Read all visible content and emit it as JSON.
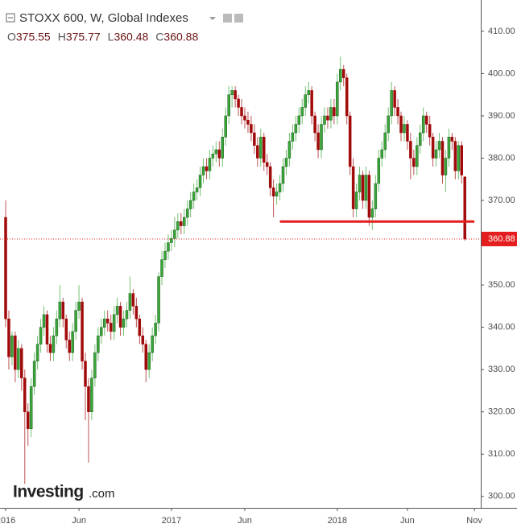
{
  "chart_data": {
    "type": "candlestick",
    "title": "STOXX 600, W, Global Indexes",
    "ohlc_labels": [
      "O",
      "H",
      "L",
      "C"
    ],
    "up_color": "#3aa63a",
    "down_color": "#a10a0a",
    "last_color": "#e41e1e",
    "watermark": "Investing",
    "watermark_suffix": ".com",
    "xlim": [
      -1.77,
      149
    ],
    "ylim": [
      297.3,
      417.4
    ],
    "xticks": [
      {
        "value": 0,
        "label": "2016"
      },
      {
        "value": 23,
        "label": "Jun"
      },
      {
        "value": 52,
        "label": "2017"
      },
      {
        "value": 75,
        "label": "Jun"
      },
      {
        "value": 104,
        "label": "2018"
      },
      {
        "value": 126,
        "label": "Jun"
      },
      {
        "value": 147,
        "label": "Nov"
      }
    ],
    "yticks": [
      {
        "value": 300,
        "label": "300.00"
      },
      {
        "value": 310,
        "label": "310.00"
      },
      {
        "value": 320,
        "label": "320.00"
      },
      {
        "value": 330,
        "label": "330.00"
      },
      {
        "value": 340,
        "label": "340.00"
      },
      {
        "value": 350,
        "label": "350.00"
      },
      {
        "value": 360,
        "label": "360.00"
      },
      {
        "value": 370,
        "label": "370.00"
      },
      {
        "value": 380,
        "label": "380.00"
      },
      {
        "value": 390,
        "label": "390.00"
      },
      {
        "value": 400,
        "label": "400.00"
      },
      {
        "value": 410,
        "label": "410.00"
      }
    ],
    "support_line": {
      "y": 365,
      "x": [
        86,
        147
      ],
      "color": "#e41e1e"
    },
    "open": [
      366,
      342,
      333,
      338,
      330,
      335,
      328,
      320,
      316,
      326,
      332,
      336,
      340,
      343,
      336,
      334,
      338,
      342,
      346,
      342,
      337,
      334,
      339,
      344,
      346,
      332,
      326,
      320,
      328,
      334,
      338,
      340,
      342,
      341,
      339,
      343,
      345,
      340,
      342,
      344,
      348,
      345,
      342,
      338,
      336,
      330,
      334,
      338,
      341,
      352,
      356,
      358,
      360,
      361,
      363,
      365,
      364,
      366,
      368,
      370,
      372,
      373,
      376,
      378,
      377,
      380,
      381,
      382,
      380,
      385,
      390,
      395,
      396,
      394,
      392,
      390,
      389,
      388,
      386,
      383,
      380,
      385,
      379,
      378,
      373,
      371,
      372,
      374,
      378,
      380,
      384,
      386,
      388,
      390,
      392,
      395,
      396,
      390,
      386,
      382,
      388,
      390,
      389,
      392,
      390,
      398,
      401,
      399,
      390,
      378,
      368,
      372,
      376,
      370,
      376,
      366,
      368,
      374,
      380,
      382,
      386,
      390,
      396,
      392,
      390,
      386,
      388,
      384,
      380,
      378,
      383,
      386,
      390,
      388,
      385,
      380,
      382,
      384,
      376,
      380,
      385,
      384,
      377,
      383,
      375.55
    ],
    "high": [
      370,
      344,
      339,
      339,
      337,
      336,
      330,
      322,
      328,
      334,
      338,
      342,
      345,
      344,
      338,
      340,
      344,
      350,
      347,
      343,
      339,
      341,
      346,
      350,
      347,
      334,
      328,
      330,
      336,
      340,
      342,
      344,
      344,
      343,
      345,
      347,
      346,
      344,
      346,
      352,
      349,
      347,
      343,
      340,
      337,
      336,
      340,
      343,
      353,
      358,
      360,
      362,
      363,
      366,
      367,
      367,
      368,
      370,
      372,
      374,
      375,
      378,
      380,
      380,
      382,
      383,
      384,
      384,
      387,
      392,
      397,
      397,
      397,
      395,
      394,
      392,
      391,
      390,
      388,
      385,
      387,
      386,
      381,
      379,
      375,
      374,
      376,
      380,
      382,
      386,
      388,
      390,
      392,
      394,
      397,
      398,
      397,
      391,
      388,
      390,
      392,
      392,
      394,
      394,
      400,
      404,
      402,
      400,
      391,
      380,
      374,
      378,
      377,
      378,
      377,
      370,
      376,
      382,
      384,
      388,
      392,
      398,
      397,
      394,
      391,
      390,
      389,
      386,
      382,
      385,
      388,
      392,
      391,
      390,
      386,
      384,
      386,
      385,
      382,
      387,
      386,
      385,
      384,
      384,
      375.77
    ],
    "low": [
      340,
      330,
      331,
      327,
      328,
      325,
      303,
      312,
      314,
      324,
      330,
      334,
      338,
      334,
      332,
      332,
      336,
      340,
      340,
      335,
      332,
      332,
      337,
      342,
      330,
      318,
      308,
      318,
      326,
      332,
      336,
      338,
      339,
      337,
      337,
      341,
      338,
      338,
      340,
      342,
      343,
      340,
      336,
      334,
      327,
      328,
      332,
      336,
      339,
      350,
      354,
      356,
      358,
      359,
      361,
      362,
      362,
      364,
      366,
      368,
      370,
      371,
      374,
      375,
      375,
      378,
      379,
      378,
      378,
      383,
      388,
      392,
      392,
      390,
      388,
      387,
      386,
      384,
      381,
      378,
      378,
      377,
      376,
      371,
      366,
      369,
      370,
      372,
      376,
      378,
      382,
      384,
      386,
      388,
      390,
      393,
      388,
      384,
      380,
      380,
      386,
      387,
      387,
      388,
      388,
      396,
      397,
      388,
      376,
      366,
      366,
      370,
      368,
      368,
      364,
      363,
      366,
      372,
      378,
      380,
      384,
      388,
      390,
      388,
      384,
      384,
      382,
      375,
      376,
      376,
      381,
      384,
      386,
      383,
      378,
      378,
      380,
      374,
      372,
      378,
      382,
      375,
      375,
      374,
      360.48
    ],
    "close": [
      342,
      333,
      338,
      330,
      335,
      328,
      320,
      316,
      326,
      332,
      336,
      340,
      343,
      336,
      334,
      338,
      342,
      346,
      342,
      337,
      334,
      339,
      344,
      346,
      332,
      326,
      320,
      328,
      334,
      338,
      340,
      342,
      341,
      339,
      343,
      345,
      340,
      342,
      344,
      348,
      345,
      342,
      338,
      336,
      330,
      334,
      338,
      341,
      352,
      356,
      358,
      360,
      361,
      363,
      365,
      364,
      366,
      368,
      370,
      372,
      373,
      376,
      378,
      377,
      380,
      381,
      382,
      380,
      385,
      390,
      395,
      396,
      394,
      392,
      390,
      389,
      388,
      386,
      383,
      380,
      385,
      379,
      378,
      373,
      371,
      372,
      374,
      378,
      380,
      384,
      386,
      388,
      390,
      392,
      395,
      396,
      390,
      386,
      382,
      388,
      390,
      389,
      392,
      390,
      398,
      401,
      399,
      390,
      378,
      368,
      372,
      376,
      370,
      376,
      366,
      368,
      374,
      380,
      382,
      386,
      390,
      396,
      392,
      390,
      386,
      388,
      384,
      380,
      378,
      383,
      386,
      390,
      388,
      385,
      380,
      382,
      384,
      376,
      380,
      385,
      384,
      377,
      383,
      376,
      360.88
    ]
  }
}
